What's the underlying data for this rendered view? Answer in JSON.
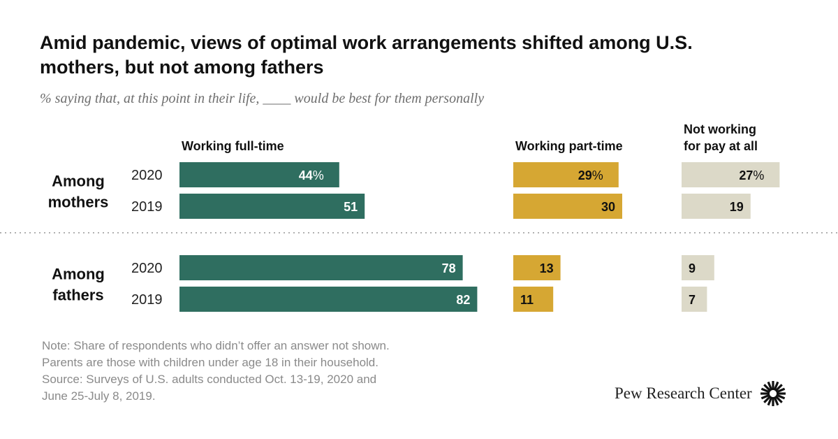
{
  "title": "Amid pandemic, views of optimal work arrangements shifted among U.S. mothers, but not among fathers",
  "subtitle": "% saying that, at this point in their life, ____ would be best for them personally",
  "chart_data": {
    "type": "bar",
    "orientation": "horizontal",
    "series": [
      {
        "name": "Working full-time",
        "color": "#2f6e60",
        "label_color": "#ffffff",
        "values": [
          44,
          51,
          78,
          82
        ]
      },
      {
        "name": "Working part-time",
        "color": "#d6a733",
        "label_color": "#111111",
        "values": [
          29,
          30,
          13,
          11
        ]
      },
      {
        "name": "Not working for pay at all",
        "label_lines": [
          "Not working",
          "for pay at all"
        ],
        "color": "#dcd9c8",
        "label_color": "#111111",
        "values": [
          27,
          19,
          9,
          7
        ]
      }
    ],
    "groups": [
      {
        "label_lines": [
          "Among",
          "mothers"
        ],
        "rows": [
          "2020",
          "2019"
        ]
      },
      {
        "label_lines": [
          "Among",
          "fathers"
        ],
        "rows": [
          "2020",
          "2019"
        ]
      }
    ],
    "value_labels": [
      [
        "44%",
        "51",
        "78",
        "82"
      ],
      [
        "29%",
        "30",
        "13",
        "11"
      ],
      [
        "27%",
        "19",
        "9",
        "7"
      ]
    ]
  },
  "notes": [
    "Note: Share of respondents who didn’t offer an answer not shown.",
    "Parents are those with children under age 18 in their household.",
    "Source:  Surveys of U.S. adults conducted Oct. 13-19, 2020 and",
    "June 25-July 8, 2019."
  ],
  "brand": {
    "name": "Pew Research Center",
    "logo_icon": "pew-sunburst-icon"
  }
}
